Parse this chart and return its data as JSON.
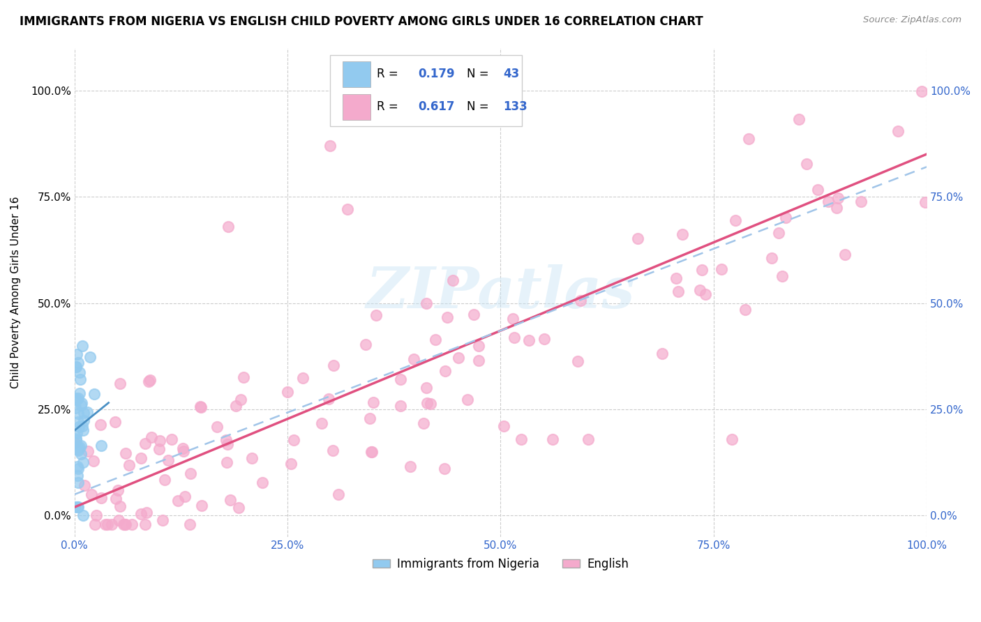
{
  "title": "IMMIGRANTS FROM NIGERIA VS ENGLISH CHILD POVERTY AMONG GIRLS UNDER 16 CORRELATION CHART",
  "source": "Source: ZipAtlas.com",
  "ylabel": "Child Poverty Among Girls Under 16",
  "xlim": [
    0,
    1.0
  ],
  "ylim": [
    -0.05,
    1.1
  ],
  "x_ticks": [
    0.0,
    0.25,
    0.5,
    0.75,
    1.0
  ],
  "x_tick_labels": [
    "0.0%",
    "25.0%",
    "50.0%",
    "75.0%",
    "100.0%"
  ],
  "y_ticks": [
    0.0,
    0.25,
    0.5,
    0.75,
    1.0
  ],
  "y_tick_labels": [
    "0.0%",
    "25.0%",
    "50.0%",
    "75.0%",
    "100.0%"
  ],
  "nigeria_R": 0.179,
  "nigeria_N": 43,
  "english_R": 0.617,
  "english_N": 133,
  "nigeria_color": "#92caef",
  "english_color": "#f4aacc",
  "nigeria_line_color": "#4a90c4",
  "english_line_color": "#e05080",
  "dashed_line_color": "#a0c4e8",
  "watermark": "ZIPatlas",
  "background_color": "#ffffff",
  "grid_color": "#cccccc",
  "grid_style": "--",
  "legend_text_color": "#333333",
  "legend_value_color": "#3366cc"
}
